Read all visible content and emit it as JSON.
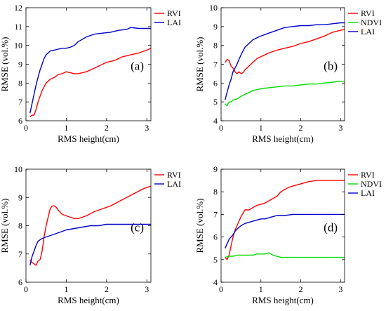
{
  "chart_data": [
    {
      "type": "line",
      "panel_label": "(a)",
      "xlabel": "RMS height(cm)",
      "ylabel": "RMSE (vol.%)",
      "xlim": [
        0,
        3.1
      ],
      "ylim": [
        6,
        12
      ],
      "xticks": [
        0,
        1,
        2,
        3
      ],
      "yticks": [
        6,
        7,
        8,
        9,
        10,
        11,
        12
      ],
      "legend": "top-right",
      "grid": false,
      "series": [
        {
          "name": "RVI",
          "color": "#ff0000",
          "x": [
            0.1,
            0.15,
            0.2,
            0.25,
            0.3,
            0.35,
            0.4,
            0.45,
            0.5,
            0.55,
            0.6,
            0.7,
            0.8,
            0.9,
            1.0,
            1.1,
            1.2,
            1.3,
            1.4,
            1.5,
            1.6,
            1.8,
            2.0,
            2.2,
            2.4,
            2.6,
            2.8,
            3.0,
            3.1
          ],
          "y": [
            6.2,
            6.3,
            6.3,
            6.6,
            7.0,
            7.3,
            7.6,
            7.8,
            8.0,
            8.1,
            8.2,
            8.3,
            8.45,
            8.5,
            8.6,
            8.55,
            8.5,
            8.5,
            8.55,
            8.6,
            8.7,
            8.9,
            9.1,
            9.2,
            9.4,
            9.5,
            9.6,
            9.75,
            9.85
          ]
        },
        {
          "name": "LAI",
          "color": "#0000cc",
          "x": [
            0.1,
            0.15,
            0.2,
            0.25,
            0.3,
            0.35,
            0.4,
            0.45,
            0.5,
            0.55,
            0.6,
            0.7,
            0.8,
            0.9,
            1.0,
            1.1,
            1.2,
            1.3,
            1.5,
            1.7,
            1.9,
            2.1,
            2.3,
            2.5,
            2.6,
            2.8,
            3.0,
            3.1
          ],
          "y": [
            6.4,
            6.9,
            7.4,
            7.9,
            8.3,
            8.7,
            9.0,
            9.3,
            9.5,
            9.6,
            9.7,
            9.75,
            9.8,
            9.85,
            9.85,
            9.9,
            10.0,
            10.2,
            10.45,
            10.6,
            10.65,
            10.7,
            10.8,
            10.85,
            10.95,
            10.9,
            10.9,
            10.9
          ]
        }
      ]
    },
    {
      "type": "line",
      "panel_label": "(b)",
      "xlabel": "RMS height(cm)",
      "ylabel": "RMSE (vol.%)",
      "xlim": [
        0,
        3.1
      ],
      "ylim": [
        4,
        10
      ],
      "xticks": [
        0,
        1,
        2,
        3
      ],
      "yticks": [
        4,
        5,
        6,
        7,
        8,
        9,
        10
      ],
      "legend": "top-right",
      "grid": false,
      "series": [
        {
          "name": "RVI",
          "color": "#ff0000",
          "x": [
            0.1,
            0.15,
            0.2,
            0.25,
            0.3,
            0.35,
            0.4,
            0.45,
            0.5,
            0.55,
            0.6,
            0.7,
            0.8,
            0.9,
            1.0,
            1.2,
            1.4,
            1.6,
            1.8,
            2.0,
            2.2,
            2.4,
            2.6,
            2.8,
            3.0,
            3.1
          ],
          "y": [
            7.1,
            7.25,
            7.2,
            6.9,
            6.8,
            6.6,
            6.5,
            6.6,
            6.5,
            6.55,
            6.7,
            6.9,
            7.1,
            7.3,
            7.4,
            7.6,
            7.75,
            7.85,
            7.95,
            8.1,
            8.2,
            8.35,
            8.5,
            8.7,
            8.8,
            8.85
          ]
        },
        {
          "name": "NDVI",
          "color": "#00dd00",
          "x": [
            0.1,
            0.15,
            0.2,
            0.25,
            0.3,
            0.4,
            0.5,
            0.6,
            0.7,
            0.8,
            0.9,
            1.0,
            1.2,
            1.4,
            1.6,
            1.8,
            2.0,
            2.2,
            2.4,
            2.6,
            2.8,
            3.0,
            3.1
          ],
          "y": [
            4.9,
            4.8,
            5.0,
            5.0,
            5.1,
            5.15,
            5.3,
            5.4,
            5.5,
            5.6,
            5.65,
            5.7,
            5.75,
            5.8,
            5.85,
            5.85,
            5.9,
            5.95,
            5.95,
            6.0,
            6.05,
            6.1,
            6.1
          ]
        },
        {
          "name": "LAI",
          "color": "#0000cc",
          "x": [
            0.1,
            0.15,
            0.2,
            0.25,
            0.3,
            0.35,
            0.4,
            0.5,
            0.6,
            0.7,
            0.8,
            0.9,
            1.0,
            1.2,
            1.4,
            1.6,
            1.8,
            2.0,
            2.2,
            2.4,
            2.6,
            2.8,
            3.0,
            3.1
          ],
          "y": [
            5.1,
            5.5,
            5.9,
            6.2,
            6.6,
            6.8,
            7.0,
            7.5,
            7.9,
            8.1,
            8.3,
            8.4,
            8.5,
            8.65,
            8.8,
            8.95,
            9.0,
            9.05,
            9.05,
            9.1,
            9.1,
            9.15,
            9.2,
            9.2
          ]
        }
      ]
    },
    {
      "type": "line",
      "panel_label": "(c)",
      "xlabel": "RMS height(cm)",
      "ylabel": "RMSE (vol.%)",
      "xlim": [
        0,
        3.1
      ],
      "ylim": [
        6,
        10
      ],
      "xticks": [
        0,
        1,
        2,
        3
      ],
      "yticks": [
        6,
        7,
        8,
        9,
        10
      ],
      "legend": "top-right",
      "grid": false,
      "series": [
        {
          "name": "RVI",
          "color": "#ff0000",
          "x": [
            0.1,
            0.15,
            0.2,
            0.25,
            0.3,
            0.35,
            0.4,
            0.45,
            0.5,
            0.55,
            0.6,
            0.65,
            0.7,
            0.75,
            0.8,
            0.9,
            1.0,
            1.1,
            1.2,
            1.3,
            1.5,
            1.7,
            1.9,
            2.1,
            2.3,
            2.5,
            2.7,
            2.9,
            3.1
          ],
          "y": [
            6.8,
            6.7,
            6.65,
            6.6,
            6.75,
            6.8,
            7.1,
            7.6,
            8.0,
            8.3,
            8.6,
            8.7,
            8.7,
            8.65,
            8.55,
            8.4,
            8.35,
            8.3,
            8.25,
            8.25,
            8.35,
            8.5,
            8.6,
            8.7,
            8.85,
            9.0,
            9.15,
            9.3,
            9.4
          ]
        },
        {
          "name": "LAI",
          "color": "#0000cc",
          "x": [
            0.1,
            0.15,
            0.2,
            0.25,
            0.3,
            0.35,
            0.4,
            0.5,
            0.6,
            0.7,
            0.8,
            0.9,
            1.0,
            1.2,
            1.4,
            1.6,
            1.8,
            2.0,
            2.2,
            2.4,
            2.6,
            2.8,
            3.0,
            3.1
          ],
          "y": [
            6.6,
            6.9,
            7.1,
            7.3,
            7.45,
            7.5,
            7.55,
            7.6,
            7.65,
            7.7,
            7.75,
            7.8,
            7.85,
            7.9,
            7.95,
            8.0,
            8.0,
            8.05,
            8.05,
            8.05,
            8.05,
            8.05,
            8.05,
            8.05
          ]
        }
      ]
    },
    {
      "type": "line",
      "panel_label": "(d)",
      "xlabel": "RMS height(cm)",
      "ylabel": "RMSE (vol.%)",
      "xlim": [
        0,
        3.1
      ],
      "ylim": [
        4,
        9
      ],
      "xticks": [
        0,
        1,
        2,
        3
      ],
      "yticks": [
        4,
        5,
        6,
        7,
        8,
        9
      ],
      "legend": "top-right",
      "grid": false,
      "series": [
        {
          "name": "RVI",
          "color": "#ff0000",
          "x": [
            0.1,
            0.15,
            0.2,
            0.25,
            0.3,
            0.35,
            0.4,
            0.5,
            0.6,
            0.7,
            0.8,
            0.9,
            1.0,
            1.1,
            1.2,
            1.3,
            1.4,
            1.5,
            1.6,
            1.7,
            1.8,
            2.0,
            2.2,
            2.4,
            2.6,
            2.8,
            3.0,
            3.1
          ],
          "y": [
            5.1,
            5.0,
            5.2,
            5.6,
            6.0,
            6.3,
            6.5,
            6.9,
            7.2,
            7.2,
            7.3,
            7.4,
            7.45,
            7.5,
            7.6,
            7.7,
            7.8,
            8.0,
            8.1,
            8.2,
            8.25,
            8.35,
            8.45,
            8.5,
            8.5,
            8.5,
            8.5,
            8.5
          ]
        },
        {
          "name": "NDVI",
          "color": "#00dd00",
          "x": [
            0.1,
            0.2,
            0.3,
            0.4,
            0.5,
            0.6,
            0.7,
            0.8,
            0.9,
            1.0,
            1.1,
            1.2,
            1.25,
            1.3,
            1.4,
            1.5,
            1.6,
            1.8,
            2.0,
            2.2,
            2.4,
            2.6,
            2.8,
            3.0,
            3.1
          ],
          "y": [
            5.1,
            5.15,
            5.15,
            5.2,
            5.2,
            5.2,
            5.2,
            5.2,
            5.25,
            5.25,
            5.25,
            5.3,
            5.25,
            5.2,
            5.15,
            5.1,
            5.1,
            5.1,
            5.1,
            5.1,
            5.1,
            5.1,
            5.1,
            5.1,
            5.1
          ]
        },
        {
          "name": "LAI",
          "color": "#0000cc",
          "x": [
            0.1,
            0.15,
            0.2,
            0.25,
            0.3,
            0.35,
            0.4,
            0.5,
            0.6,
            0.7,
            0.8,
            0.9,
            1.0,
            1.1,
            1.2,
            1.3,
            1.4,
            1.6,
            1.8,
            2.0,
            2.2,
            2.4,
            2.6,
            2.8,
            3.0,
            3.1
          ],
          "y": [
            5.5,
            5.7,
            5.9,
            6.0,
            6.1,
            6.25,
            6.35,
            6.5,
            6.6,
            6.65,
            6.7,
            6.75,
            6.8,
            6.8,
            6.85,
            6.9,
            6.95,
            6.95,
            7.0,
            7.0,
            7.0,
            7.0,
            7.0,
            7.0,
            7.0,
            7.0
          ]
        }
      ]
    }
  ]
}
